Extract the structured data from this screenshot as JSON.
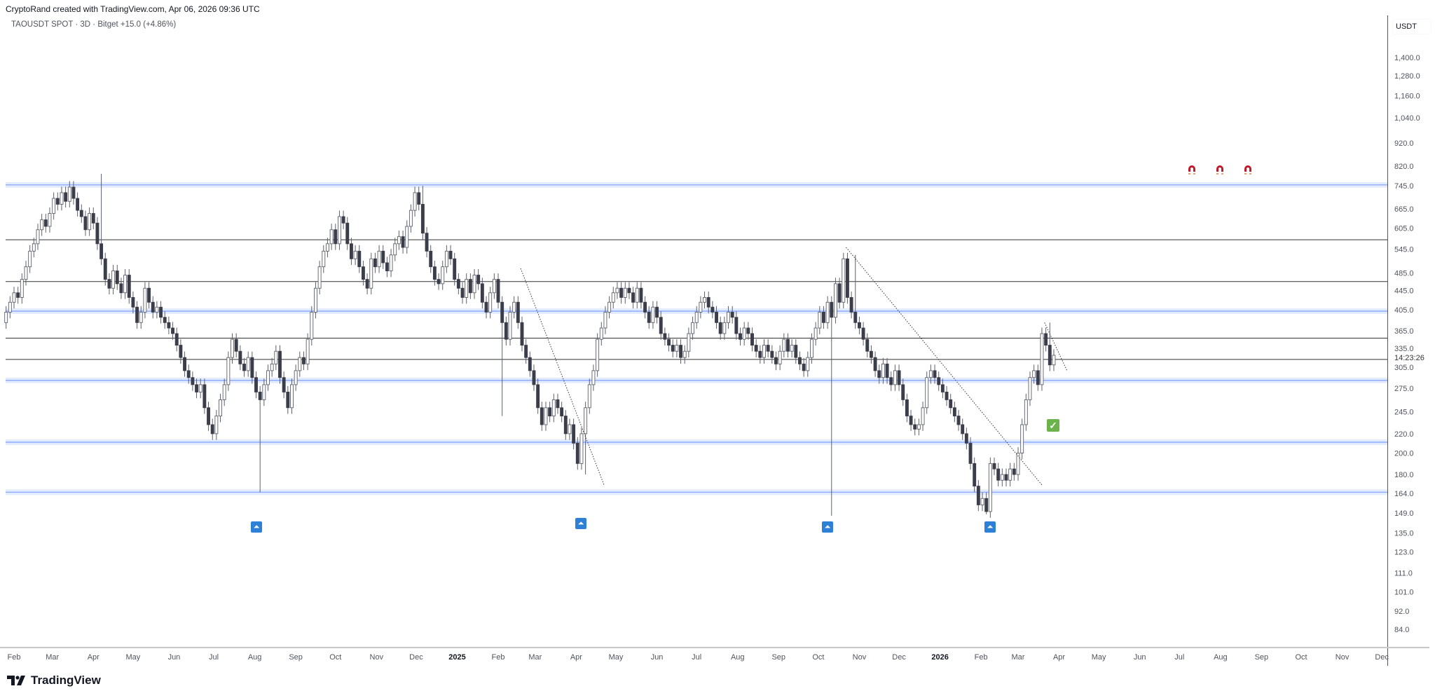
{
  "header": {
    "attribution": "CryptoRand created with TradingView.com, Apr 06, 2026 09:36 UTC",
    "symbol_line": "TAOUSDT SPOT · 3D · Bitget  +15.0 (+4.86%)"
  },
  "chart_data": {
    "type": "candlestick",
    "symbol": "TAOUSDT SPOT",
    "exchange": "Bitget",
    "interval": "3D",
    "change": "+15.0 (+4.86%)",
    "first_candle": "2024-01-26",
    "closes": [
      400,
      420,
      440,
      430,
      470,
      500,
      540,
      560,
      600,
      630,
      610,
      650,
      700,
      680,
      720,
      690,
      740,
      700,
      660,
      640,
      600,
      650,
      620,
      560,
      520,
      470,
      450,
      490,
      460,
      440,
      480,
      430,
      410,
      380,
      400,
      450,
      420,
      400,
      410,
      390,
      380,
      370,
      360,
      340,
      320,
      300,
      290,
      280,
      270,
      280,
      250,
      230,
      220,
      240,
      260,
      280,
      320,
      350,
      330,
      310,
      300,
      320,
      290,
      270,
      260,
      280,
      300,
      310,
      330,
      290,
      270,
      250,
      280,
      300,
      320,
      310,
      350,
      400,
      450,
      500,
      540,
      560,
      600,
      560,
      640,
      620,
      560,
      520,
      540,
      500,
      470,
      450,
      520,
      500,
      540,
      510,
      490,
      530,
      560,
      580,
      550,
      610,
      660,
      720,
      680,
      590,
      540,
      500,
      470,
      460,
      500,
      540,
      520,
      470,
      450,
      430,
      470,
      440,
      480,
      460,
      420,
      400,
      440,
      470,
      420,
      380,
      350,
      400,
      420,
      380,
      340,
      320,
      300,
      280,
      250,
      230,
      250,
      240,
      260,
      250,
      240,
      220,
      230,
      210,
      190,
      220,
      250,
      280,
      300,
      350,
      370,
      400,
      420,
      440,
      450,
      430,
      450,
      440,
      420,
      450,
      420,
      400,
      380,
      410,
      390,
      360,
      350,
      340,
      330,
      340,
      320,
      330,
      360,
      380,
      400,
      420,
      430,
      410,
      400,
      380,
      360,
      380,
      400,
      390,
      360,
      350,
      370,
      360,
      340,
      330,
      320,
      340,
      330,
      320,
      310,
      330,
      350,
      330,
      340,
      320,
      310,
      300,
      320,
      350,
      370,
      400,
      380,
      420,
      390,
      460,
      420,
      520,
      430,
      400,
      380,
      370,
      350,
      330,
      320,
      300,
      290,
      310,
      290,
      280,
      300,
      280,
      260,
      240,
      230,
      225,
      230,
      250,
      290,
      300,
      290,
      280,
      270,
      260,
      250,
      240,
      230,
      220,
      210,
      190,
      170,
      155,
      160,
      150,
      190,
      185,
      175,
      180,
      175,
      185,
      180,
      200,
      230,
      260,
      290,
      300,
      280,
      360,
      340,
      308.6,
      323.6
    ],
    "wick_lows": [
      {
        "date": "2024-08-05",
        "low": 165
      },
      {
        "date": "2025-02-03",
        "low": 240
      },
      {
        "date": "2025-04-07",
        "low": 180
      },
      {
        "date": "2025-10-10",
        "low": 147
      },
      {
        "date": "2026-02-05",
        "low": 148
      }
    ],
    "wick_highs": [
      {
        "date": "2024-04-06",
        "high": 790
      },
      {
        "date": "2024-12-05",
        "high": 745
      },
      {
        "date": "2025-10-29",
        "high": 530
      },
      {
        "date": "2026-03-24",
        "high": 380
      }
    ],
    "zones": [
      748,
      402,
      286,
      211,
      165
    ],
    "lines": [
      571,
      465,
      352,
      317
    ],
    "trendlines": [
      {
        "from": {
          "date": "2025-02-18",
          "price": 496
        },
        "to": {
          "date": "2025-04-22",
          "price": 171
        }
      },
      {
        "from": {
          "date": "2025-10-22",
          "price": 550
        },
        "to": {
          "date": "2026-03-19",
          "price": 171
        }
      },
      {
        "from": {
          "date": "2026-03-21",
          "price": 380
        },
        "to": {
          "date": "2026-04-07",
          "price": 300
        }
      }
    ],
    "price_axis": {
      "unit": "USDT",
      "scale": "log",
      "ticks": [
        "1,400.0",
        "1,280.0",
        "1,160.0",
        "1,040.0",
        "920.0",
        "820.0",
        "745.0",
        "665.0",
        "605.0",
        "545.0",
        "485.0",
        "445.0",
        "405.0",
        "365.0",
        "335.0",
        "305.0",
        "275.0",
        "245.0",
        "220.0",
        "200.0",
        "180.0",
        "164.0",
        "149.0",
        "135.0",
        "123.0",
        "111.0",
        "101.0",
        "92.0",
        "84.0"
      ],
      "countdown": "14:23:26"
    },
    "time_axis": {
      "ticks": [
        {
          "label": "Feb",
          "date": "2024-02-01"
        },
        {
          "label": "Mar",
          "date": "2024-03-01"
        },
        {
          "label": "Apr",
          "date": "2024-04-01"
        },
        {
          "label": "May",
          "date": "2024-05-01"
        },
        {
          "label": "Jun",
          "date": "2024-06-01"
        },
        {
          "label": "Jul",
          "date": "2024-07-01"
        },
        {
          "label": "Aug",
          "date": "2024-08-01"
        },
        {
          "label": "Sep",
          "date": "2024-09-01"
        },
        {
          "label": "Oct",
          "date": "2024-10-01"
        },
        {
          "label": "Nov",
          "date": "2024-11-01"
        },
        {
          "label": "Dec",
          "date": "2024-12-01"
        },
        {
          "label": "2025",
          "date": "2025-01-01",
          "bold": true
        },
        {
          "label": "Feb",
          "date": "2025-02-01"
        },
        {
          "label": "Mar",
          "date": "2025-03-01"
        },
        {
          "label": "Apr",
          "date": "2025-04-01"
        },
        {
          "label": "May",
          "date": "2025-05-01"
        },
        {
          "label": "Jun",
          "date": "2025-06-01"
        },
        {
          "label": "Jul",
          "date": "2025-07-01"
        },
        {
          "label": "Aug",
          "date": "2025-08-01"
        },
        {
          "label": "Sep",
          "date": "2025-09-01"
        },
        {
          "label": "Oct",
          "date": "2025-10-01"
        },
        {
          "label": "Nov",
          "date": "2025-11-01"
        },
        {
          "label": "Dec",
          "date": "2025-12-01"
        },
        {
          "label": "2026",
          "date": "2026-01-01",
          "bold": true
        },
        {
          "label": "Feb",
          "date": "2026-02-01"
        },
        {
          "label": "Mar",
          "date": "2026-03-01"
        },
        {
          "label": "Apr",
          "date": "2026-04-01"
        },
        {
          "label": "May",
          "date": "2026-05-01"
        },
        {
          "label": "Jun",
          "date": "2026-06-01"
        },
        {
          "label": "Jul",
          "date": "2026-07-01"
        },
        {
          "label": "Aug",
          "date": "2026-08-01"
        },
        {
          "label": "Sep",
          "date": "2026-09-01"
        },
        {
          "label": "Oct",
          "date": "2026-10-01"
        },
        {
          "label": "Nov",
          "date": "2026-11-01"
        },
        {
          "label": "Dec",
          "date": "2026-12-01"
        }
      ]
    },
    "colors": {
      "bull_fill": "#ffffff",
      "bull_border": "#5d606b",
      "bear": "#3b3e4a",
      "zone": "#2962ff",
      "line": "#333333",
      "marker": "#2e7fd6",
      "check": "#6bb34a",
      "magnet": "#c2182b"
    }
  },
  "markers": {
    "up_arrow_icon": "double-chevron-up",
    "check_icon": "check",
    "magnet_icon": "magnet",
    "arrow_glyph": "⏶",
    "check_glyph": "✓"
  },
  "footer": {
    "logo_text": "TradingView"
  }
}
